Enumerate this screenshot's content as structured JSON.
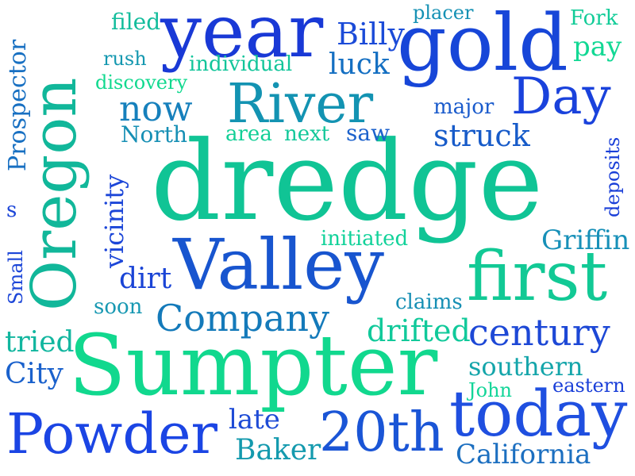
{
  "words": [
    {
      "text": "dredge",
      "color": "#10c495"
    },
    {
      "text": "Sumpter",
      "color": "#11d88e"
    },
    {
      "text": "gold",
      "color": "#1746d8"
    },
    {
      "text": "year",
      "color": "#1939d6"
    },
    {
      "text": "Oregon",
      "color": "#11b79a"
    },
    {
      "text": "Valley",
      "color": "#1855cf"
    },
    {
      "text": "first",
      "color": "#12c995"
    },
    {
      "text": "today",
      "color": "#1f4fe0"
    },
    {
      "text": "River",
      "color": "#1393b2"
    },
    {
      "text": "Day",
      "color": "#1a42dc"
    },
    {
      "text": "Powder",
      "color": "#1b45e4"
    },
    {
      "text": "20th",
      "color": "#1a55d6"
    },
    {
      "text": "Company",
      "color": "#147aba"
    },
    {
      "text": "century",
      "color": "#1d48d6"
    },
    {
      "text": "California",
      "color": "#1c6fc0"
    },
    {
      "text": "southern",
      "color": "#14a5aa"
    },
    {
      "text": "drifted",
      "color": "#10c99a"
    },
    {
      "text": "Griffin",
      "color": "#1790b8"
    },
    {
      "text": "struck",
      "color": "#175bc9"
    },
    {
      "text": "now",
      "color": "#1680bc"
    },
    {
      "text": "Billy",
      "color": "#1b4bd8"
    },
    {
      "text": "luck",
      "color": "#146fc2"
    },
    {
      "text": "Baker",
      "color": "#149aae"
    },
    {
      "text": "late",
      "color": "#1e4bd6"
    },
    {
      "text": "dirt",
      "color": "#1a44d6"
    },
    {
      "text": "tried",
      "color": "#12b69f"
    },
    {
      "text": "City",
      "color": "#1a61cc"
    },
    {
      "text": "Prospector",
      "color": "#1870c2"
    },
    {
      "text": "vicinity",
      "color": "#1c46d8"
    },
    {
      "text": "Small",
      "color": "#1c46d8"
    },
    {
      "text": "pay",
      "color": "#12d894"
    },
    {
      "text": "Fork",
      "color": "#12cc98"
    },
    {
      "text": "placer",
      "color": "#1591b4"
    },
    {
      "text": "filed",
      "color": "#13bd9c"
    },
    {
      "text": "rush",
      "color": "#1598b0"
    },
    {
      "text": "individual",
      "color": "#12c59a"
    },
    {
      "text": "discovery",
      "color": "#12d98f"
    },
    {
      "text": "major",
      "color": "#1a5bcc"
    },
    {
      "text": "North",
      "color": "#168fb4"
    },
    {
      "text": "area",
      "color": "#12cf96"
    },
    {
      "text": "next",
      "color": "#13c89a"
    },
    {
      "text": "saw",
      "color": "#1c62cc"
    },
    {
      "text": "deposits",
      "color": "#1a3fd8"
    },
    {
      "text": "initiated",
      "color": "#12d29a"
    },
    {
      "text": "claims",
      "color": "#168fb4"
    },
    {
      "text": "soon",
      "color": "#1798b2"
    },
    {
      "text": "John",
      "color": "#12d598"
    },
    {
      "text": "eastern",
      "color": "#1a3fd8"
    },
    {
      "text": "s",
      "color": "#1c46d8"
    }
  ]
}
